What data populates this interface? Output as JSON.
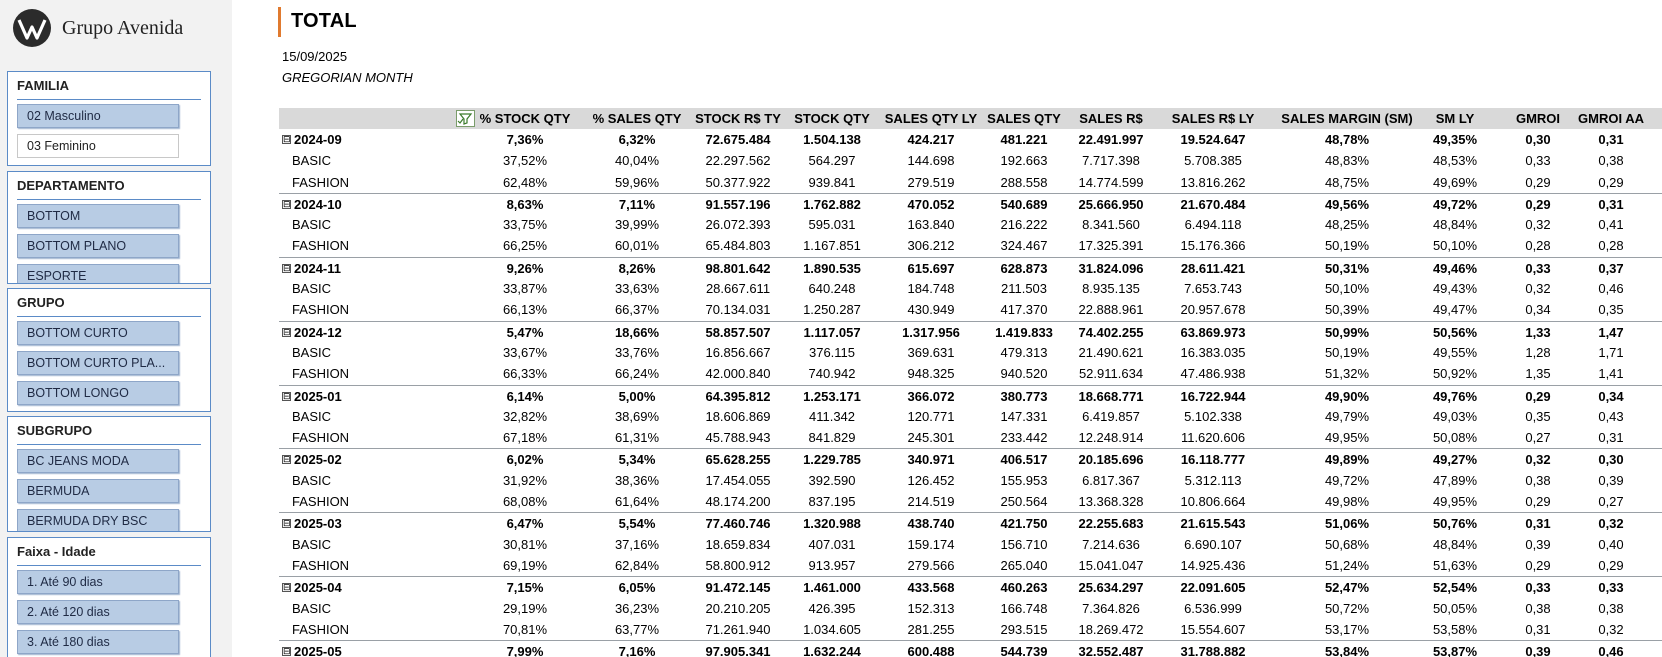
{
  "brand": {
    "name": "Grupo Avenida",
    "logo_icon": "avenida-logo-icon"
  },
  "slicers": [
    {
      "title": "FAMILIA",
      "items": [
        {
          "label": "02 Masculino",
          "selected": true
        },
        {
          "label": "03 Feminino",
          "selected": false
        }
      ]
    },
    {
      "title": "DEPARTAMENTO",
      "items": [
        {
          "label": "BOTTOM",
          "selected": true
        },
        {
          "label": "BOTTOM PLANO",
          "selected": true
        },
        {
          "label": "ESPORTE",
          "selected": true
        }
      ]
    },
    {
      "title": "GRUPO",
      "items": [
        {
          "label": "BOTTOM CURTO",
          "selected": true
        },
        {
          "label": "BOTTOM CURTO PLA...",
          "selected": true
        },
        {
          "label": "BOTTOM LONGO",
          "selected": true
        }
      ]
    },
    {
      "title": "SUBGRUPO",
      "items": [
        {
          "label": "BC JEANS MODA",
          "selected": true
        },
        {
          "label": "BERMUDA",
          "selected": true
        },
        {
          "label": "BERMUDA DRY BSC",
          "selected": true
        }
      ]
    },
    {
      "title": "Faixa - Idade",
      "items": [
        {
          "label": "1. Até 90 dias",
          "selected": true
        },
        {
          "label": "2. Até 120 dias",
          "selected": true
        },
        {
          "label": "3. Até 180 dias",
          "selected": true
        }
      ]
    }
  ],
  "report": {
    "title": "TOTAL",
    "date": "15/09/2025",
    "period": "GREGORIAN MONTH",
    "accent_color": "#e07a2f"
  },
  "pivot": {
    "filter_icon": "filter-icon",
    "columns": [
      "% STOCK QTY",
      "% SALES QTY",
      "STOCK R$ TY",
      "STOCK QTY",
      "SALES QTY LY",
      "SALES QTY",
      "SALES R$",
      "SALES R$ LY",
      "SALES MARGIN (SM)",
      "SM LY",
      "GMROI",
      "GMROI AA"
    ],
    "groups": [
      {
        "label": "2024-09",
        "toggle": "⊟",
        "total": [
          "7,36%",
          "6,32%",
          "72.675.484",
          "1.504.138",
          "424.217",
          "481.221",
          "22.491.997",
          "19.524.647",
          "48,78%",
          "49,35%",
          "0,30",
          "0,31"
        ],
        "rows": [
          {
            "label": "BASIC",
            "values": [
              "37,52%",
              "40,04%",
              "22.297.562",
              "564.297",
              "144.698",
              "192.663",
              "7.717.398",
              "5.708.385",
              "48,83%",
              "48,53%",
              "0,33",
              "0,38"
            ]
          },
          {
            "label": "FASHION",
            "values": [
              "62,48%",
              "59,96%",
              "50.377.922",
              "939.841",
              "279.519",
              "288.558",
              "14.774.599",
              "13.816.262",
              "48,75%",
              "49,69%",
              "0,29",
              "0,29"
            ]
          }
        ]
      },
      {
        "label": "2024-10",
        "toggle": "⊟",
        "total": [
          "8,63%",
          "7,11%",
          "91.557.196",
          "1.762.882",
          "470.052",
          "540.689",
          "25.666.950",
          "21.670.484",
          "49,56%",
          "49,72%",
          "0,29",
          "0,31"
        ],
        "rows": [
          {
            "label": "BASIC",
            "values": [
              "33,75%",
              "39,99%",
              "26.072.393",
              "595.031",
              "163.840",
              "216.222",
              "8.341.560",
              "6.494.118",
              "48,25%",
              "48,84%",
              "0,32",
              "0,41"
            ]
          },
          {
            "label": "FASHION",
            "values": [
              "66,25%",
              "60,01%",
              "65.484.803",
              "1.167.851",
              "306.212",
              "324.467",
              "17.325.391",
              "15.176.366",
              "50,19%",
              "50,10%",
              "0,28",
              "0,28"
            ]
          }
        ]
      },
      {
        "label": "2024-11",
        "toggle": "⊟",
        "total": [
          "9,26%",
          "8,26%",
          "98.801.642",
          "1.890.535",
          "615.697",
          "628.873",
          "31.824.096",
          "28.611.421",
          "50,31%",
          "49,46%",
          "0,33",
          "0,37"
        ],
        "rows": [
          {
            "label": "BASIC",
            "values": [
              "33,87%",
              "33,63%",
              "28.667.611",
              "640.248",
              "184.748",
              "211.503",
              "8.935.135",
              "7.653.743",
              "50,10%",
              "49,43%",
              "0,32",
              "0,46"
            ]
          },
          {
            "label": "FASHION",
            "values": [
              "66,13%",
              "66,37%",
              "70.134.031",
              "1.250.287",
              "430.949",
              "417.370",
              "22.888.961",
              "20.957.678",
              "50,39%",
              "49,47%",
              "0,34",
              "0,35"
            ]
          }
        ]
      },
      {
        "label": "2024-12",
        "toggle": "⊟",
        "total": [
          "5,47%",
          "18,66%",
          "58.857.507",
          "1.117.057",
          "1.317.956",
          "1.419.833",
          "74.402.255",
          "63.869.973",
          "50,99%",
          "50,56%",
          "1,33",
          "1,47"
        ],
        "rows": [
          {
            "label": "BASIC",
            "values": [
              "33,67%",
              "33,76%",
              "16.856.667",
              "376.115",
              "369.631",
              "479.313",
              "21.490.621",
              "16.383.035",
              "50,19%",
              "49,55%",
              "1,28",
              "1,71"
            ]
          },
          {
            "label": "FASHION",
            "values": [
              "66,33%",
              "66,24%",
              "42.000.840",
              "740.942",
              "948.325",
              "940.520",
              "52.911.634",
              "47.486.938",
              "51,32%",
              "50,92%",
              "1,35",
              "1,41"
            ]
          }
        ]
      },
      {
        "label": "2025-01",
        "toggle": "⊟",
        "total": [
          "6,14%",
          "5,00%",
          "64.395.812",
          "1.253.171",
          "366.072",
          "380.773",
          "18.668.771",
          "16.722.944",
          "49,90%",
          "49,76%",
          "0,29",
          "0,34"
        ],
        "rows": [
          {
            "label": "BASIC",
            "values": [
              "32,82%",
              "38,69%",
              "18.606.869",
              "411.342",
              "120.771",
              "147.331",
              "6.419.857",
              "5.102.338",
              "49,79%",
              "49,03%",
              "0,35",
              "0,43"
            ]
          },
          {
            "label": "FASHION",
            "values": [
              "67,18%",
              "61,31%",
              "45.788.943",
              "841.829",
              "245.301",
              "233.442",
              "12.248.914",
              "11.620.606",
              "49,95%",
              "50,08%",
              "0,27",
              "0,31"
            ]
          }
        ]
      },
      {
        "label": "2025-02",
        "toggle": "⊟",
        "total": [
          "6,02%",
          "5,34%",
          "65.628.255",
          "1.229.785",
          "340.971",
          "406.517",
          "20.185.696",
          "16.118.777",
          "49,89%",
          "49,27%",
          "0,32",
          "0,30"
        ],
        "rows": [
          {
            "label": "BASIC",
            "values": [
              "31,92%",
              "38,36%",
              "17.454.055",
              "392.590",
              "126.452",
              "155.953",
              "6.817.367",
              "5.312.113",
              "49,72%",
              "47,89%",
              "0,38",
              "0,39"
            ]
          },
          {
            "label": "FASHION",
            "values": [
              "68,08%",
              "61,64%",
              "48.174.200",
              "837.195",
              "214.519",
              "250.564",
              "13.368.328",
              "10.806.664",
              "49,98%",
              "49,95%",
              "0,29",
              "0,27"
            ]
          }
        ]
      },
      {
        "label": "2025-03",
        "toggle": "⊟",
        "total": [
          "6,47%",
          "5,54%",
          "77.460.746",
          "1.320.988",
          "438.740",
          "421.750",
          "22.255.683",
          "21.615.543",
          "51,06%",
          "50,76%",
          "0,31",
          "0,32"
        ],
        "rows": [
          {
            "label": "BASIC",
            "values": [
              "30,81%",
              "37,16%",
              "18.659.834",
              "407.031",
              "159.174",
              "156.710",
              "7.214.636",
              "6.690.107",
              "50,68%",
              "48,84%",
              "0,39",
              "0,40"
            ]
          },
          {
            "label": "FASHION",
            "values": [
              "69,19%",
              "62,84%",
              "58.800.912",
              "913.957",
              "279.566",
              "265.040",
              "15.041.047",
              "14.925.436",
              "51,24%",
              "51,63%",
              "0,29",
              "0,29"
            ]
          }
        ]
      },
      {
        "label": "2025-04",
        "toggle": "⊟",
        "total": [
          "7,15%",
          "6,05%",
          "91.472.145",
          "1.461.000",
          "433.568",
          "460.263",
          "25.634.297",
          "22.091.605",
          "52,47%",
          "52,54%",
          "0,33",
          "0,33"
        ],
        "rows": [
          {
            "label": "BASIC",
            "values": [
              "29,19%",
              "36,23%",
              "20.210.205",
              "426.395",
              "152.313",
              "166.748",
              "7.364.826",
              "6.536.999",
              "50,72%",
              "50,05%",
              "0,38",
              "0,38"
            ]
          },
          {
            "label": "FASHION",
            "values": [
              "70,81%",
              "63,77%",
              "71.261.940",
              "1.034.605",
              "281.255",
              "293.515",
              "18.269.472",
              "15.554.607",
              "53,17%",
              "53,58%",
              "0,31",
              "0,32"
            ]
          }
        ]
      },
      {
        "label": "2025-05",
        "toggle": "⊟",
        "total": [
          "7,99%",
          "7,16%",
          "97.905.341",
          "1.632.244",
          "600.488",
          "544.739",
          "32.552.487",
          "31.788.882",
          "53,84%",
          "53,87%",
          "0,39",
          "0,46"
        ],
        "rows": []
      }
    ]
  }
}
